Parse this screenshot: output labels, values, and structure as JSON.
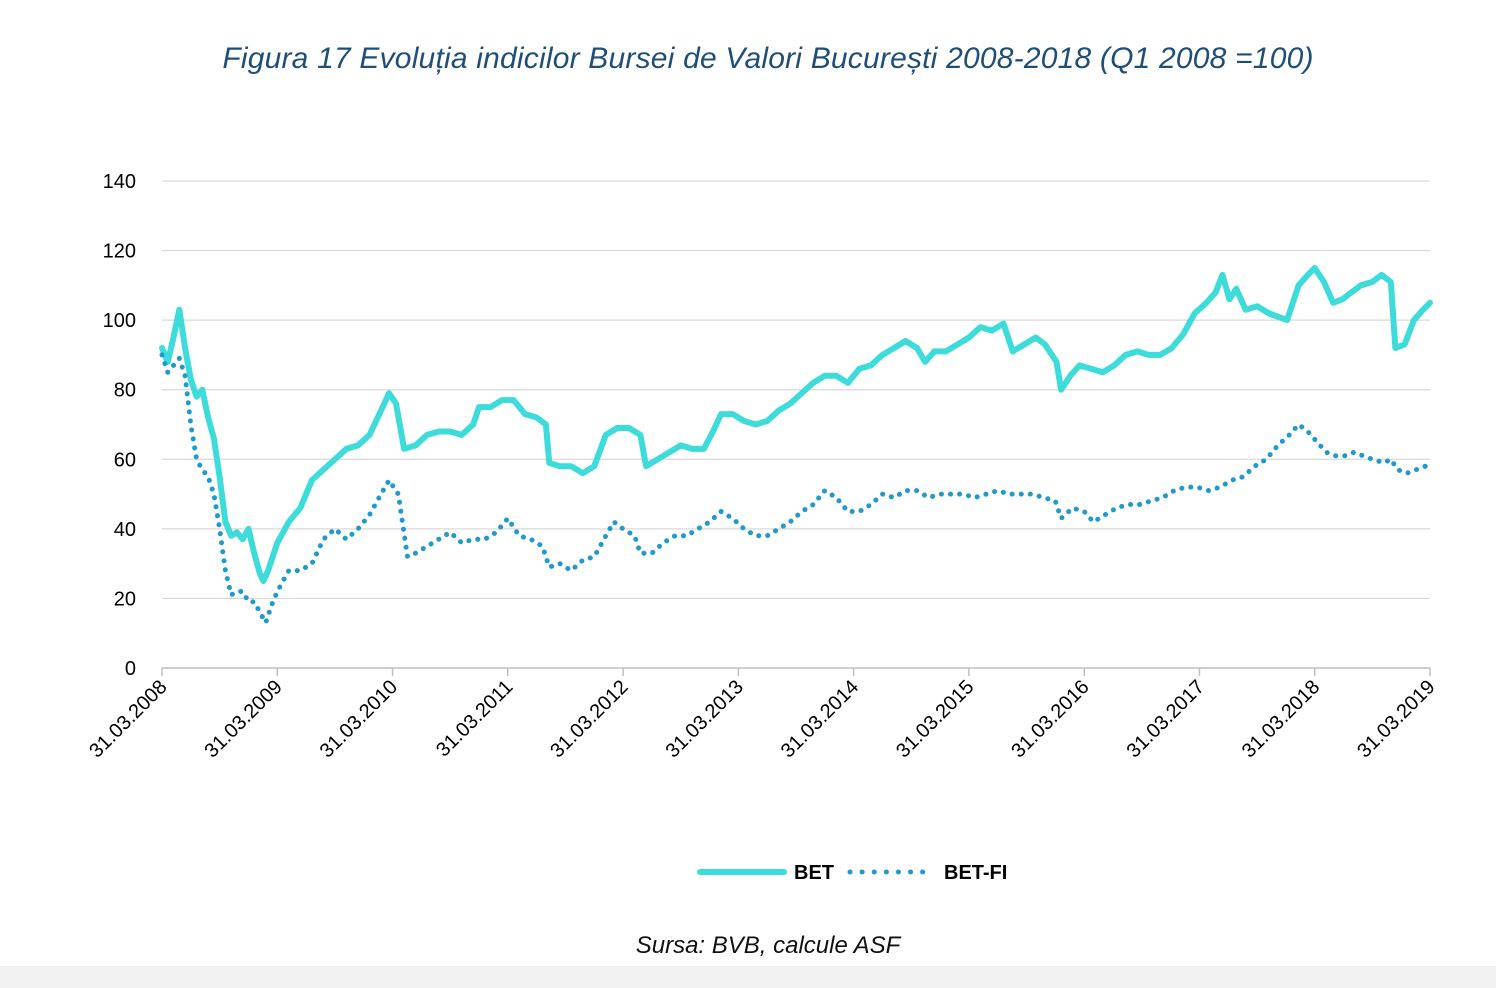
{
  "title": "Figura 17 Evoluția indicilor Bursei de Valori București 2008-2018 (Q1 2008 =100)",
  "source": "Sursa: BVB, calcule ASF",
  "colors": {
    "bet": "#3ddbd9",
    "betfi": "#1f9acb",
    "grid": "#d9d9d9",
    "axis": "#bfbfbf",
    "title": "#1f4e79"
  },
  "chart_data": {
    "type": "line",
    "ylim": [
      0,
      140
    ],
    "yticks": [
      0,
      20,
      40,
      60,
      80,
      100,
      120,
      140
    ],
    "xlim": [
      2008.0,
      2019.0
    ],
    "xticks": [
      {
        "x": 2008,
        "label": "31.03.2008"
      },
      {
        "x": 2009,
        "label": "31.03.2009"
      },
      {
        "x": 2010,
        "label": "31.03.2010"
      },
      {
        "x": 2011,
        "label": "31.03.2011"
      },
      {
        "x": 2012,
        "label": "31.03.2012"
      },
      {
        "x": 2013,
        "label": "31.03.2013"
      },
      {
        "x": 2014,
        "label": "31.03.2014"
      },
      {
        "x": 2015,
        "label": "31.03.2015"
      },
      {
        "x": 2016,
        "label": "31.03.2016"
      },
      {
        "x": 2017,
        "label": "31.03.2017"
      },
      {
        "x": 2018,
        "label": "31.03.2018"
      },
      {
        "x": 2019,
        "label": "31.03.2019"
      }
    ],
    "legend_position": "bottom",
    "series": [
      {
        "name": "BET",
        "style": "solid",
        "points": [
          [
            2008.0,
            92
          ],
          [
            2008.05,
            88
          ],
          [
            2008.1,
            95
          ],
          [
            2008.15,
            103
          ],
          [
            2008.2,
            92
          ],
          [
            2008.25,
            83
          ],
          [
            2008.3,
            78
          ],
          [
            2008.35,
            80
          ],
          [
            2008.4,
            72
          ],
          [
            2008.45,
            66
          ],
          [
            2008.5,
            55
          ],
          [
            2008.55,
            42
          ],
          [
            2008.6,
            38
          ],
          [
            2008.65,
            39
          ],
          [
            2008.7,
            37
          ],
          [
            2008.75,
            40
          ],
          [
            2008.8,
            33
          ],
          [
            2008.85,
            27
          ],
          [
            2008.88,
            25
          ],
          [
            2008.92,
            28
          ],
          [
            2009.0,
            36
          ],
          [
            2009.1,
            42
          ],
          [
            2009.2,
            46
          ],
          [
            2009.3,
            54
          ],
          [
            2009.4,
            57
          ],
          [
            2009.5,
            60
          ],
          [
            2009.6,
            63
          ],
          [
            2009.7,
            64
          ],
          [
            2009.8,
            67
          ],
          [
            2009.9,
            74
          ],
          [
            2009.97,
            79
          ],
          [
            2010.03,
            76
          ],
          [
            2010.1,
            63
          ],
          [
            2010.2,
            64
          ],
          [
            2010.3,
            67
          ],
          [
            2010.4,
            68
          ],
          [
            2010.5,
            68
          ],
          [
            2010.6,
            67
          ],
          [
            2010.7,
            70
          ],
          [
            2010.75,
            75
          ],
          [
            2010.85,
            75
          ],
          [
            2010.95,
            77
          ],
          [
            2011.05,
            77
          ],
          [
            2011.15,
            73
          ],
          [
            2011.25,
            72
          ],
          [
            2011.33,
            70
          ],
          [
            2011.36,
            59
          ],
          [
            2011.45,
            58
          ],
          [
            2011.55,
            58
          ],
          [
            2011.65,
            56
          ],
          [
            2011.75,
            58
          ],
          [
            2011.85,
            67
          ],
          [
            2011.95,
            69
          ],
          [
            2012.05,
            69
          ],
          [
            2012.15,
            67
          ],
          [
            2012.2,
            58
          ],
          [
            2012.3,
            60
          ],
          [
            2012.4,
            62
          ],
          [
            2012.5,
            64
          ],
          [
            2012.6,
            63
          ],
          [
            2012.7,
            63
          ],
          [
            2012.78,
            68
          ],
          [
            2012.85,
            73
          ],
          [
            2012.95,
            73
          ],
          [
            2013.05,
            71
          ],
          [
            2013.15,
            70
          ],
          [
            2013.25,
            71
          ],
          [
            2013.35,
            74
          ],
          [
            2013.45,
            76
          ],
          [
            2013.55,
            79
          ],
          [
            2013.65,
            82
          ],
          [
            2013.75,
            84
          ],
          [
            2013.85,
            84
          ],
          [
            2013.95,
            82
          ],
          [
            2014.05,
            86
          ],
          [
            2014.15,
            87
          ],
          [
            2014.25,
            90
          ],
          [
            2014.35,
            92
          ],
          [
            2014.45,
            94
          ],
          [
            2014.55,
            92
          ],
          [
            2014.62,
            88
          ],
          [
            2014.7,
            91
          ],
          [
            2014.8,
            91
          ],
          [
            2014.9,
            93
          ],
          [
            2015.0,
            95
          ],
          [
            2015.1,
            98
          ],
          [
            2015.2,
            97
          ],
          [
            2015.3,
            99
          ],
          [
            2015.38,
            91
          ],
          [
            2015.48,
            93
          ],
          [
            2015.58,
            95
          ],
          [
            2015.66,
            93
          ],
          [
            2015.76,
            88
          ],
          [
            2015.8,
            80
          ],
          [
            2015.88,
            84
          ],
          [
            2015.96,
            87
          ],
          [
            2016.06,
            86
          ],
          [
            2016.16,
            85
          ],
          [
            2016.26,
            87
          ],
          [
            2016.36,
            90
          ],
          [
            2016.46,
            91
          ],
          [
            2016.56,
            90
          ],
          [
            2016.66,
            90
          ],
          [
            2016.76,
            92
          ],
          [
            2016.86,
            96
          ],
          [
            2016.96,
            102
          ],
          [
            2017.06,
            105
          ],
          [
            2017.14,
            108
          ],
          [
            2017.2,
            113
          ],
          [
            2017.26,
            106
          ],
          [
            2017.32,
            109
          ],
          [
            2017.4,
            103
          ],
          [
            2017.5,
            104
          ],
          [
            2017.6,
            102
          ],
          [
            2017.68,
            101
          ],
          [
            2017.76,
            100
          ],
          [
            2017.86,
            110
          ],
          [
            2017.94,
            113
          ],
          [
            2018.0,
            115
          ],
          [
            2018.08,
            111
          ],
          [
            2018.16,
            105
          ],
          [
            2018.24,
            106
          ],
          [
            2018.32,
            108
          ],
          [
            2018.4,
            110
          ],
          [
            2018.5,
            111
          ],
          [
            2018.58,
            113
          ],
          [
            2018.66,
            111
          ],
          [
            2018.7,
            92
          ],
          [
            2018.78,
            93
          ],
          [
            2018.86,
            100
          ],
          [
            2018.94,
            103
          ],
          [
            2019.0,
            105
          ]
        ]
      },
      {
        "name": "BET-FI",
        "style": "dotted",
        "points": [
          [
            2008.0,
            90
          ],
          [
            2008.05,
            85
          ],
          [
            2008.1,
            87
          ],
          [
            2008.15,
            89
          ],
          [
            2008.2,
            84
          ],
          [
            2008.25,
            70
          ],
          [
            2008.3,
            60
          ],
          [
            2008.35,
            57
          ],
          [
            2008.4,
            55
          ],
          [
            2008.45,
            50
          ],
          [
            2008.5,
            40
          ],
          [
            2008.55,
            28
          ],
          [
            2008.6,
            21
          ],
          [
            2008.65,
            22
          ],
          [
            2008.7,
            22
          ],
          [
            2008.75,
            19
          ],
          [
            2008.8,
            19
          ],
          [
            2008.85,
            16
          ],
          [
            2008.9,
            13
          ],
          [
            2008.95,
            18
          ],
          [
            2009.0,
            22
          ],
          [
            2009.1,
            28
          ],
          [
            2009.2,
            28
          ],
          [
            2009.3,
            30
          ],
          [
            2009.4,
            37
          ],
          [
            2009.5,
            40
          ],
          [
            2009.6,
            37
          ],
          [
            2009.7,
            40
          ],
          [
            2009.8,
            44
          ],
          [
            2009.9,
            50
          ],
          [
            2009.97,
            54
          ],
          [
            2010.05,
            50
          ],
          [
            2010.13,
            32
          ],
          [
            2010.2,
            33
          ],
          [
            2010.3,
            35
          ],
          [
            2010.4,
            37
          ],
          [
            2010.5,
            39
          ],
          [
            2010.6,
            36
          ],
          [
            2010.7,
            37
          ],
          [
            2010.8,
            37
          ],
          [
            2010.9,
            39
          ],
          [
            2011.0,
            43
          ],
          [
            2011.1,
            38
          ],
          [
            2011.2,
            37
          ],
          [
            2011.3,
            35
          ],
          [
            2011.36,
            29
          ],
          [
            2011.45,
            30
          ],
          [
            2011.55,
            28
          ],
          [
            2011.65,
            31
          ],
          [
            2011.75,
            32
          ],
          [
            2011.85,
            38
          ],
          [
            2011.92,
            42
          ],
          [
            2012.0,
            40
          ],
          [
            2012.1,
            38
          ],
          [
            2012.15,
            33
          ],
          [
            2012.25,
            33
          ],
          [
            2012.35,
            36
          ],
          [
            2012.45,
            38
          ],
          [
            2012.55,
            38
          ],
          [
            2012.65,
            40
          ],
          [
            2012.75,
            42
          ],
          [
            2012.85,
            45
          ],
          [
            2012.95,
            43
          ],
          [
            2013.05,
            40
          ],
          [
            2013.15,
            38
          ],
          [
            2013.25,
            38
          ],
          [
            2013.35,
            40
          ],
          [
            2013.45,
            42
          ],
          [
            2013.55,
            45
          ],
          [
            2013.65,
            47
          ],
          [
            2013.75,
            51
          ],
          [
            2013.85,
            49
          ],
          [
            2013.95,
            45
          ],
          [
            2014.05,
            45
          ],
          [
            2014.15,
            47
          ],
          [
            2014.25,
            50
          ],
          [
            2014.35,
            49
          ],
          [
            2014.45,
            51
          ],
          [
            2014.55,
            51
          ],
          [
            2014.65,
            49
          ],
          [
            2014.75,
            50
          ],
          [
            2014.85,
            50
          ],
          [
            2014.95,
            50
          ],
          [
            2015.05,
            49
          ],
          [
            2015.15,
            50
          ],
          [
            2015.25,
            51
          ],
          [
            2015.35,
            50
          ],
          [
            2015.45,
            50
          ],
          [
            2015.55,
            50
          ],
          [
            2015.65,
            49
          ],
          [
            2015.75,
            48
          ],
          [
            2015.8,
            43
          ],
          [
            2015.9,
            46
          ],
          [
            2016.0,
            45
          ],
          [
            2016.08,
            42
          ],
          [
            2016.18,
            44
          ],
          [
            2016.28,
            46
          ],
          [
            2016.38,
            47
          ],
          [
            2016.48,
            47
          ],
          [
            2016.58,
            48
          ],
          [
            2016.68,
            49
          ],
          [
            2016.78,
            51
          ],
          [
            2016.88,
            52
          ],
          [
            2016.98,
            52
          ],
          [
            2017.08,
            51
          ],
          [
            2017.18,
            52
          ],
          [
            2017.28,
            54
          ],
          [
            2017.38,
            55
          ],
          [
            2017.48,
            58
          ],
          [
            2017.58,
            60
          ],
          [
            2017.68,
            64
          ],
          [
            2017.78,
            67
          ],
          [
            2017.86,
            70
          ],
          [
            2017.94,
            68
          ],
          [
            2018.02,
            65
          ],
          [
            2018.1,
            62
          ],
          [
            2018.18,
            61
          ],
          [
            2018.26,
            61
          ],
          [
            2018.34,
            62
          ],
          [
            2018.42,
            61
          ],
          [
            2018.5,
            60
          ],
          [
            2018.6,
            59
          ],
          [
            2018.66,
            60
          ],
          [
            2018.72,
            57
          ],
          [
            2018.8,
            56
          ],
          [
            2018.88,
            57
          ],
          [
            2018.96,
            58
          ],
          [
            2019.0,
            59
          ]
        ]
      }
    ]
  }
}
